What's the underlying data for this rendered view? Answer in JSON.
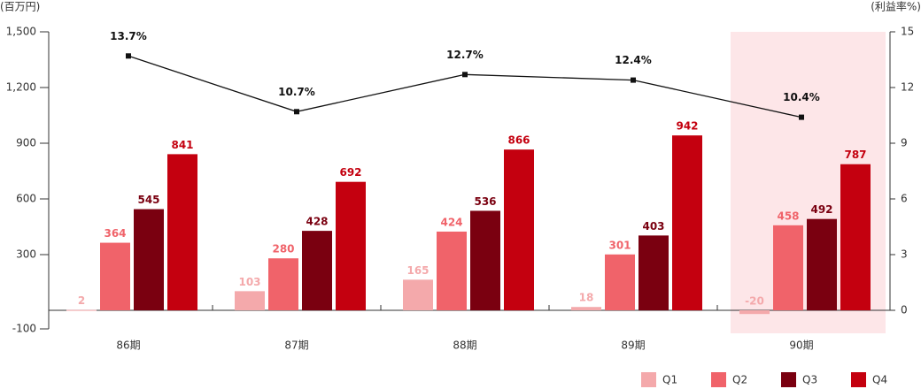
{
  "chart_data": {
    "type": "bar",
    "y_label": "(百万円)",
    "y2_label": "(利益率%)",
    "categories": [
      "86期",
      "87期",
      "88期",
      "89期",
      "90期"
    ],
    "series": [
      {
        "name": "Q1",
        "color": "#f4a9ab",
        "label_color": "#f4a9ab",
        "values": [
          2,
          103,
          165,
          18,
          -20
        ]
      },
      {
        "name": "Q2",
        "color": "#f0636a",
        "label_color": "#f0636a",
        "values": [
          364,
          280,
          424,
          301,
          458
        ]
      },
      {
        "name": "Q3",
        "color": "#7a0010",
        "label_color": "#7a0010",
        "values": [
          545,
          428,
          536,
          403,
          492
        ]
      },
      {
        "name": "Q4",
        "color": "#c4000f",
        "label_color": "#c4000f",
        "values": [
          841,
          692,
          866,
          942,
          787
        ]
      },
      {
        "type": "line",
        "axis": "y2",
        "color": "#111111",
        "values": [
          13.7,
          10.7,
          12.7,
          12.4,
          10.4
        ],
        "value_labels": [
          "13.7%",
          "10.7%",
          "12.7%",
          "12.4%",
          "10.4%"
        ]
      }
    ],
    "ylim": [
      -100,
      1500
    ],
    "yticks": [
      -100,
      300,
      600,
      900,
      {
        "value": 1200,
        "label": "1,200"
      },
      {
        "value": 1500,
        "label": "1,500"
      }
    ],
    "y2lim": [
      -1,
      15
    ],
    "y2ticks": [
      0,
      3,
      6,
      9,
      12,
      15
    ],
    "highlight": 4,
    "highlight_color": "#fde6e8"
  }
}
